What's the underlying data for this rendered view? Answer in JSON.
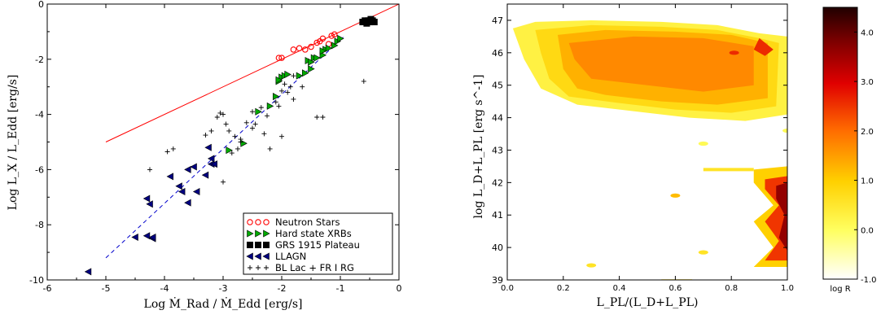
{
  "chart_data": [
    {
      "type": "scatter",
      "xlabel": "Log Ṁ_Rad / Ṁ_Edd [erg/s]",
      "ylabel": "Log L_X / L_Edd [erg/s]",
      "xlim": [
        -6,
        0
      ],
      "ylim": [
        -10,
        0
      ],
      "xticks": [
        "-6",
        "-5",
        "-4",
        "-3",
        "-2",
        "-1",
        "0"
      ],
      "yticks": [
        "-10",
        "-8",
        "-6",
        "-4",
        "-2",
        "0"
      ],
      "legend_position": "bottom-right",
      "lines": [
        {
          "style": "solid",
          "color": "#ff0000",
          "x": [
            -5.0,
            0.0
          ],
          "y": [
            -5.0,
            0.0
          ]
        },
        {
          "style": "dashed",
          "color": "#0000cc",
          "x": [
            -5.0,
            -0.95
          ],
          "y": [
            -9.2,
            -1.2
          ]
        }
      ],
      "series": [
        {
          "name": "Neutron Stars",
          "marker": "circle",
          "color": "#ff0000",
          "x": [
            -2.05,
            -2.0,
            -1.8,
            -1.7,
            -1.6,
            -1.5,
            -1.4,
            -1.35,
            -1.3,
            -1.2,
            -1.15,
            -1.1
          ],
          "y": [
            -1.95,
            -1.95,
            -1.65,
            -1.6,
            -1.65,
            -1.55,
            -1.4,
            -1.35,
            -1.25,
            -1.45,
            -1.15,
            -1.1
          ]
        },
        {
          "name": "Hard state XRBs",
          "marker": "triangle-right",
          "color": "#00aa00",
          "x": [
            -2.65,
            -2.4,
            -2.2,
            -2.1,
            -2.05,
            -2.0,
            -1.95,
            -1.7,
            -1.6,
            -1.55,
            -1.5,
            -1.45,
            -1.4,
            -1.3,
            -1.25,
            -1.2,
            -1.1,
            -1.05,
            -1.0,
            -2.9,
            -2.05,
            -1.9,
            -1.5,
            -1.3
          ],
          "y": [
            -5.05,
            -3.9,
            -3.7,
            -3.35,
            -2.8,
            -2.65,
            -2.6,
            -2.6,
            -2.5,
            -2.05,
            -2.35,
            -1.95,
            -1.95,
            -1.85,
            -1.65,
            -1.6,
            -1.5,
            -1.35,
            -1.25,
            -5.3,
            -2.75,
            -2.55,
            -2.1,
            -1.7
          ]
        },
        {
          "name": "GRS 1915 Plateau",
          "marker": "square",
          "color": "#000000",
          "x": [
            -0.62,
            -0.58,
            -0.55,
            -0.52,
            -0.5,
            -0.48,
            -0.45,
            -0.42
          ],
          "y": [
            -0.65,
            -0.6,
            -0.7,
            -0.6,
            -0.65,
            -0.55,
            -0.6,
            -0.65
          ]
        },
        {
          "name": "LLAGN",
          "marker": "triangle-left",
          "color": "#000080",
          "x": [
            -5.3,
            -4.5,
            -4.3,
            -4.25,
            -4.3,
            -4.2,
            -3.9,
            -3.7,
            -3.6,
            -3.75,
            -3.5,
            -3.45,
            -3.3,
            -3.2,
            -3.2,
            -3.25,
            -3.15,
            -3.6,
            -4.2
          ],
          "y": [
            -9.7,
            -8.45,
            -7.05,
            -7.25,
            -8.4,
            -8.5,
            -6.25,
            -6.8,
            -6.0,
            -6.6,
            -5.9,
            -6.8,
            -6.2,
            -5.8,
            -5.6,
            -5.2,
            -5.8,
            -7.2,
            -8.45
          ]
        },
        {
          "name": "BL Lac + FR I RG",
          "marker": "plus",
          "color": "#000000",
          "x": [
            -4.25,
            -3.95,
            -3.85,
            -3.3,
            -3.2,
            -3.1,
            -3.05,
            -3.0,
            -2.95,
            -2.9,
            -2.85,
            -2.75,
            -2.7,
            -2.6,
            -2.5,
            -2.45,
            -2.35,
            -2.25,
            -2.2,
            -2.1,
            -2.05,
            -2.0,
            -1.95,
            -1.9,
            -1.85,
            -1.8,
            -1.65,
            -1.4,
            -1.3,
            -0.6,
            -3.0,
            -2.8,
            -2.7,
            -2.5,
            -2.3,
            -1.8,
            -2.0
          ],
          "y": [
            -6.0,
            -5.35,
            -5.25,
            -4.75,
            -4.6,
            -4.1,
            -3.95,
            -4.0,
            -4.35,
            -4.6,
            -5.4,
            -5.25,
            -4.9,
            -4.3,
            -3.9,
            -4.35,
            -3.75,
            -4.05,
            -5.25,
            -3.55,
            -3.7,
            -3.15,
            -2.9,
            -3.2,
            -3.0,
            -3.45,
            -3.0,
            -4.1,
            -4.1,
            -2.8,
            -6.45,
            -4.8,
            -5.0,
            -4.5,
            -4.7,
            -2.6,
            -4.8
          ]
        }
      ]
    },
    {
      "type": "heatmap",
      "xlabel": "L_PL/(L_D+L_PL)",
      "ylabel": "log L_D+L_PL [erg s^-1]",
      "xlim": [
        0,
        1
      ],
      "ylim": [
        39,
        47.5
      ],
      "xticks": [
        "0.0",
        "0.2",
        "0.4",
        "0.6",
        "0.8",
        "1.0"
      ],
      "yticks": [
        "39",
        "40",
        "41",
        "42",
        "43",
        "44",
        "45",
        "46",
        "47"
      ],
      "colorbar": {
        "label": "log R",
        "range": [
          -1.0,
          4.5
        ],
        "ticks": [
          "-1.0",
          "0.0",
          "1.0",
          "2.0",
          "3.0",
          "4.0"
        ],
        "colormap": "hot-reversed"
      },
      "regions": [
        {
          "level": 0.3,
          "points": [
            [
              0.02,
              46.75
            ],
            [
              0.1,
              46.95
            ],
            [
              0.3,
              47.0
            ],
            [
              0.55,
              46.95
            ],
            [
              0.75,
              46.85
            ],
            [
              0.9,
              46.6
            ],
            [
              1.0,
              46.5
            ],
            [
              1.0,
              44.1
            ],
            [
              0.85,
              43.9
            ],
            [
              0.65,
              44.0
            ],
            [
              0.45,
              44.2
            ],
            [
              0.25,
              44.4
            ],
            [
              0.12,
              44.9
            ],
            [
              0.06,
              45.8
            ]
          ]
        },
        {
          "level": 0.8,
          "points": [
            [
              0.1,
              46.7
            ],
            [
              0.3,
              46.85
            ],
            [
              0.55,
              46.8
            ],
            [
              0.75,
              46.7
            ],
            [
              0.9,
              46.45
            ],
            [
              0.97,
              46.3
            ],
            [
              0.96,
              44.35
            ],
            [
              0.8,
              44.15
            ],
            [
              0.6,
              44.25
            ],
            [
              0.4,
              44.45
            ],
            [
              0.22,
              44.65
            ],
            [
              0.15,
              45.2
            ],
            [
              0.12,
              46.0
            ]
          ]
        },
        {
          "level": 1.3,
          "points": [
            [
              0.18,
              46.55
            ],
            [
              0.35,
              46.7
            ],
            [
              0.6,
              46.65
            ],
            [
              0.8,
              46.55
            ],
            [
              0.93,
              46.3
            ],
            [
              0.93,
              44.6
            ],
            [
              0.75,
              44.4
            ],
            [
              0.55,
              44.5
            ],
            [
              0.35,
              44.7
            ],
            [
              0.25,
              44.9
            ],
            [
              0.2,
              45.5
            ]
          ]
        },
        {
          "level": 1.7,
          "points": [
            [
              0.22,
              46.3
            ],
            [
              0.45,
              46.5
            ],
            [
              0.7,
              46.45
            ],
            [
              0.88,
              46.2
            ],
            [
              0.88,
              45.0
            ],
            [
              0.7,
              44.8
            ],
            [
              0.5,
              45.0
            ],
            [
              0.3,
              45.2
            ],
            [
              0.24,
              45.8
            ]
          ]
        },
        {
          "level": 2.6,
          "points": [
            [
              0.9,
              46.45
            ],
            [
              0.95,
              46.1
            ],
            [
              0.92,
              45.9
            ],
            [
              0.88,
              46.1
            ]
          ]
        },
        {
          "level": 1.0,
          "points": [
            [
              0.88,
              42.4
            ],
            [
              1.0,
              42.5
            ],
            [
              1.0,
              39.4
            ],
            [
              0.88,
              39.4
            ],
            [
              0.95,
              40.0
            ],
            [
              0.88,
              40.8
            ],
            [
              0.95,
              41.3
            ],
            [
              0.88,
              42.0
            ]
          ]
        },
        {
          "level": 2.5,
          "points": [
            [
              0.92,
              42.1
            ],
            [
              1.0,
              42.2
            ],
            [
              1.0,
              39.6
            ],
            [
              0.92,
              39.6
            ],
            [
              0.97,
              40.2
            ],
            [
              0.92,
              40.8
            ],
            [
              0.97,
              41.3
            ],
            [
              0.92,
              41.8
            ]
          ]
        },
        {
          "level": 3.8,
          "points": [
            [
              0.96,
              41.9
            ],
            [
              1.0,
              42.0
            ],
            [
              1.0,
              39.9
            ],
            [
              0.97,
              40.3
            ],
            [
              0.99,
              41.0
            ],
            [
              0.96,
              41.5
            ]
          ]
        },
        {
          "level": 0.6,
          "points": [
            [
              0.7,
              42.45
            ],
            [
              0.88,
              42.45
            ],
            [
              0.88,
              42.35
            ],
            [
              0.7,
              42.35
            ]
          ]
        },
        {
          "level": 0.6,
          "points": [
            [
              0.55,
              39.02
            ],
            [
              0.66,
              39.02
            ],
            [
              0.66,
              38.95
            ],
            [
              0.55,
              38.95
            ]
          ]
        }
      ],
      "spots": [
        {
          "x": 0.6,
          "y": 41.6,
          "level": 1.2
        },
        {
          "x": 0.3,
          "y": 39.45,
          "level": 0.6
        },
        {
          "x": 0.7,
          "y": 39.85,
          "level": 0.6
        },
        {
          "x": 0.7,
          "y": 43.2,
          "level": 0.1
        },
        {
          "x": 1.0,
          "y": 43.6,
          "level": 0.1
        },
        {
          "x": 0.81,
          "y": 46.0,
          "level": 2.6
        }
      ]
    }
  ]
}
